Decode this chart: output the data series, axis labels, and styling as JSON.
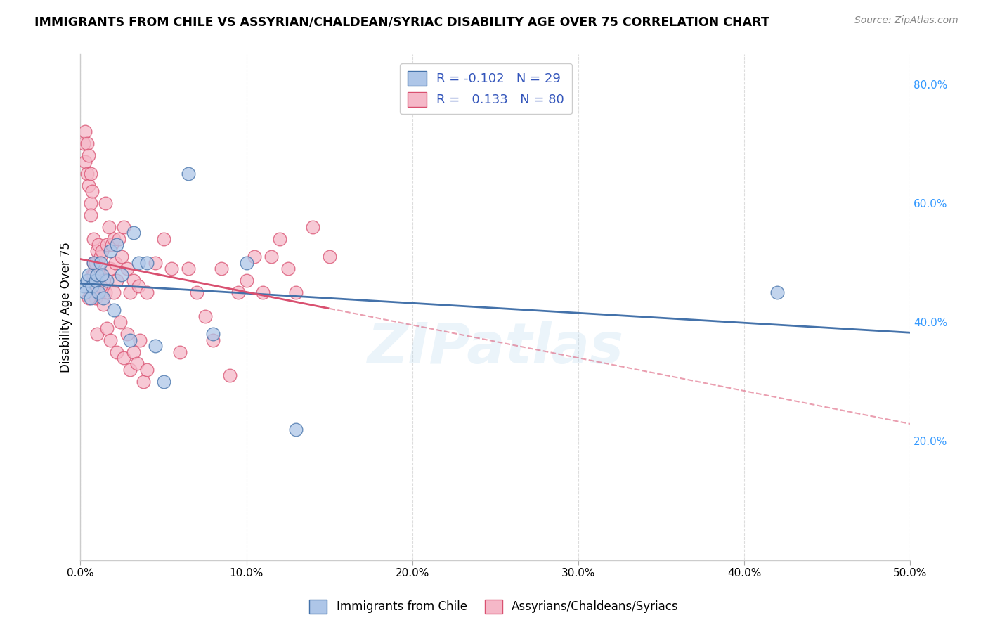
{
  "title": "IMMIGRANTS FROM CHILE VS ASSYRIAN/CHALDEAN/SYRIAC DISABILITY AGE OVER 75 CORRELATION CHART",
  "source": "Source: ZipAtlas.com",
  "ylabel": "Disability Age Over 75",
  "xlim": [
    0.0,
    50.0
  ],
  "ylim": [
    0.0,
    85.0
  ],
  "right_yticks": [
    20.0,
    40.0,
    60.0,
    80.0
  ],
  "legend_r_blue": "-0.102",
  "legend_n_blue": "29",
  "legend_r_pink": "0.133",
  "legend_n_pink": "80",
  "blue_color": "#aec6e8",
  "pink_color": "#f5b8c8",
  "blue_line_color": "#4472aa",
  "pink_line_color": "#d95070",
  "watermark": "ZIPatlas",
  "blue_points_x": [
    0.2,
    0.3,
    0.4,
    0.5,
    0.6,
    0.7,
    0.8,
    0.9,
    1.0,
    1.1,
    1.2,
    1.4,
    1.6,
    1.8,
    2.0,
    2.5,
    3.0,
    3.5,
    4.0,
    5.0,
    6.5,
    8.0,
    10.0,
    13.0,
    42.0,
    1.3,
    2.2,
    3.2,
    4.5
  ],
  "blue_points_y": [
    46.0,
    45.0,
    47.0,
    48.0,
    44.0,
    46.0,
    50.0,
    47.0,
    48.0,
    45.0,
    50.0,
    44.0,
    47.0,
    52.0,
    42.0,
    48.0,
    37.0,
    50.0,
    50.0,
    30.0,
    65.0,
    38.0,
    50.0,
    22.0,
    45.0,
    48.0,
    53.0,
    55.0,
    36.0
  ],
  "pink_points_x": [
    0.2,
    0.3,
    0.3,
    0.4,
    0.4,
    0.5,
    0.5,
    0.6,
    0.6,
    0.7,
    0.7,
    0.8,
    0.8,
    0.9,
    0.9,
    1.0,
    1.0,
    1.1,
    1.1,
    1.2,
    1.2,
    1.3,
    1.3,
    1.4,
    1.5,
    1.5,
    1.6,
    1.7,
    1.8,
    1.9,
    2.0,
    2.1,
    2.2,
    2.3,
    2.5,
    2.6,
    2.8,
    3.0,
    3.2,
    3.5,
    4.0,
    4.5,
    5.0,
    5.5,
    6.0,
    6.5,
    7.0,
    7.5,
    8.0,
    8.5,
    9.0,
    9.5,
    10.0,
    10.5,
    11.0,
    11.5,
    12.0,
    12.5,
    13.0,
    14.0,
    15.0,
    0.5,
    0.6,
    0.8,
    1.0,
    1.2,
    1.4,
    1.6,
    1.8,
    2.0,
    2.2,
    2.4,
    2.6,
    2.8,
    3.0,
    3.2,
    3.4,
    3.6,
    3.8,
    4.0
  ],
  "pink_points_y": [
    70.0,
    72.0,
    67.0,
    65.0,
    70.0,
    63.0,
    68.0,
    60.0,
    65.0,
    48.0,
    62.0,
    50.0,
    54.0,
    44.0,
    50.0,
    46.0,
    52.0,
    48.0,
    53.0,
    45.0,
    51.0,
    48.0,
    52.0,
    47.0,
    60.0,
    45.0,
    53.0,
    56.0,
    49.0,
    53.0,
    54.0,
    50.0,
    47.0,
    54.0,
    51.0,
    56.0,
    49.0,
    45.0,
    47.0,
    46.0,
    45.0,
    50.0,
    54.0,
    49.0,
    35.0,
    49.0,
    45.0,
    41.0,
    37.0,
    49.0,
    31.0,
    45.0,
    47.0,
    51.0,
    45.0,
    51.0,
    54.0,
    49.0,
    45.0,
    56.0,
    51.0,
    44.0,
    58.0,
    48.0,
    38.0,
    46.0,
    43.0,
    39.0,
    37.0,
    45.0,
    35.0,
    40.0,
    34.0,
    38.0,
    32.0,
    35.0,
    33.0,
    37.0,
    30.0,
    32.0
  ],
  "grid_color": "#dddddd",
  "background_color": "#ffffff",
  "pink_solid_xmax": 15.0
}
